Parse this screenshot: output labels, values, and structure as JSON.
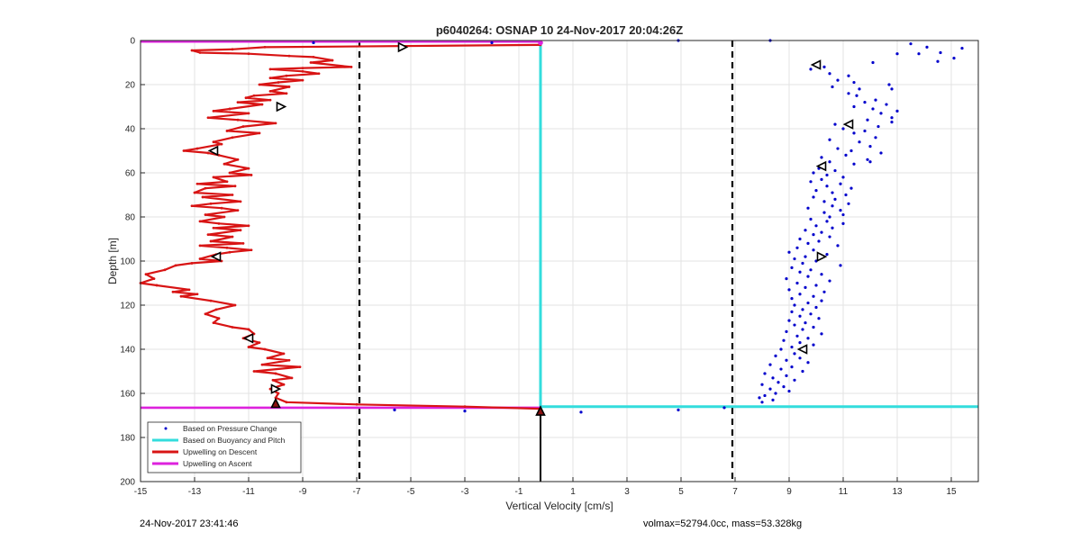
{
  "chart_data": {
    "type": "scatter",
    "title": "p6040264: OSNAP 10 24-Nov-2017 20:04:26Z",
    "xlabel": "Vertical Velocity [cm/s]",
    "ylabel": "Depth [m]",
    "xlim": [
      -15,
      16
    ],
    "ylim": [
      0,
      200
    ],
    "y_reversed": true,
    "grid": true,
    "legend_position": "bottom-left",
    "xticks": [
      -15,
      -13,
      -11,
      -9,
      -7,
      -5,
      -3,
      -1,
      1,
      3,
      5,
      7,
      9,
      11,
      13,
      15
    ],
    "yticks": [
      0,
      20,
      40,
      60,
      80,
      100,
      120,
      140,
      160,
      180,
      200
    ],
    "legend": [
      "Based on Pressure Change",
      "Based on Buoyancy and Pitch",
      "Upwelling on Descent",
      "Upwelling on Ascent"
    ],
    "colors": {
      "pressure": "#0000cc",
      "buoyancy": "#33dddd",
      "descent": "#d81414",
      "ascent": "#dd22dd",
      "dashed": "#000000"
    },
    "dashed_lines_x": [
      -6.9,
      6.9
    ],
    "buoyancy_line": {
      "x": -0.2,
      "depth_top": 1.5,
      "depth_bottom": 166,
      "bottom_line_x_start": -0.2,
      "bottom_line_x_end": 16
    },
    "ascent_lines": [
      {
        "depth": 0.5,
        "x_start": -15,
        "x_end": -0.2
      },
      {
        "depth": 166.5,
        "x_start": -15,
        "x_end": -0.2
      }
    ],
    "descent_profile": [
      [
        -0.2,
        2
      ],
      [
        -10.4,
        3
      ],
      [
        -11.6,
        4
      ],
      [
        -13.1,
        4.5
      ],
      [
        -12.8,
        5.5
      ],
      [
        -11.0,
        6
      ],
      [
        -9.5,
        7
      ],
      [
        -8.6,
        7.5
      ],
      [
        -7.9,
        9
      ],
      [
        -8.7,
        10
      ],
      [
        -7.2,
        12
      ],
      [
        -9.0,
        12.5
      ],
      [
        -10.2,
        13
      ],
      [
        -9.0,
        14
      ],
      [
        -8.4,
        15
      ],
      [
        -9.6,
        16
      ],
      [
        -10.2,
        17
      ],
      [
        -9.0,
        18
      ],
      [
        -9.9,
        19
      ],
      [
        -10.6,
        20
      ],
      [
        -9.5,
        21
      ],
      [
        -10.2,
        23
      ],
      [
        -9.6,
        24
      ],
      [
        -10.8,
        25
      ],
      [
        -11.1,
        26
      ],
      [
        -10.2,
        27
      ],
      [
        -11.4,
        28
      ],
      [
        -10.5,
        29
      ],
      [
        -11.7,
        31
      ],
      [
        -12.3,
        32
      ],
      [
        -11.0,
        33
      ],
      [
        -12.5,
        35
      ],
      [
        -11.4,
        36
      ],
      [
        -10.0,
        37.5
      ],
      [
        -11.2,
        39
      ],
      [
        -11.8,
        41
      ],
      [
        -10.6,
        42
      ],
      [
        -11.6,
        44
      ],
      [
        -12.3,
        46
      ],
      [
        -12.0,
        47
      ],
      [
        -12.9,
        49
      ],
      [
        -13.4,
        50
      ],
      [
        -12.5,
        51
      ],
      [
        -12.1,
        52
      ],
      [
        -11.4,
        54
      ],
      [
        -11.9,
        56
      ],
      [
        -11.0,
        58
      ],
      [
        -11.7,
        60
      ],
      [
        -10.9,
        61
      ],
      [
        -12.3,
        62
      ],
      [
        -11.8,
        64
      ],
      [
        -12.9,
        65
      ],
      [
        -11.5,
        66
      ],
      [
        -12.6,
        67
      ],
      [
        -13.0,
        69
      ],
      [
        -11.6,
        70
      ],
      [
        -12.7,
        71
      ],
      [
        -11.3,
        73
      ],
      [
        -12.4,
        74
      ],
      [
        -13.1,
        75
      ],
      [
        -12.0,
        76
      ],
      [
        -11.4,
        77
      ],
      [
        -12.6,
        79
      ],
      [
        -11.9,
        80
      ],
      [
        -12.8,
        82
      ],
      [
        -12.1,
        83
      ],
      [
        -11.0,
        84
      ],
      [
        -12.3,
        85
      ],
      [
        -11.3,
        86
      ],
      [
        -12.5,
        88
      ],
      [
        -11.6,
        89
      ],
      [
        -12.4,
        91
      ],
      [
        -11.2,
        92
      ],
      [
        -12.8,
        93
      ],
      [
        -11.8,
        94
      ],
      [
        -10.9,
        95
      ],
      [
        -11.7,
        96
      ],
      [
        -12.2,
        97
      ],
      [
        -12.8,
        99
      ],
      [
        -12.0,
        100
      ],
      [
        -13.1,
        101
      ],
      [
        -13.7,
        102
      ],
      [
        -14.1,
        104
      ],
      [
        -14.8,
        106
      ],
      [
        -14.5,
        108
      ],
      [
        -15.0,
        110
      ],
      [
        -14.4,
        111
      ],
      [
        -13.2,
        113
      ],
      [
        -13.8,
        114
      ],
      [
        -12.9,
        115
      ],
      [
        -13.5,
        116
      ],
      [
        -12.4,
        118
      ],
      [
        -11.5,
        120
      ],
      [
        -12.2,
        122
      ],
      [
        -12.6,
        124
      ],
      [
        -12.1,
        126
      ],
      [
        -12.3,
        128
      ],
      [
        -11.6,
        130
      ],
      [
        -11.0,
        131
      ],
      [
        -10.8,
        133
      ],
      [
        -11.2,
        135
      ],
      [
        -10.6,
        137
      ],
      [
        -11.0,
        139
      ],
      [
        -10.4,
        140
      ],
      [
        -9.7,
        142
      ],
      [
        -10.3,
        144
      ],
      [
        -9.5,
        145
      ],
      [
        -10.5,
        147
      ],
      [
        -9.1,
        148
      ],
      [
        -10.8,
        150
      ],
      [
        -10.0,
        151
      ],
      [
        -9.4,
        153
      ],
      [
        -10.1,
        154
      ],
      [
        -9.7,
        156
      ],
      [
        -10.2,
        158
      ],
      [
        -9.9,
        160
      ],
      [
        -10.0,
        162
      ],
      [
        -9.6,
        164
      ],
      [
        -7.0,
        165
      ],
      [
        -3.0,
        166
      ],
      [
        -0.2,
        167
      ]
    ],
    "descent_markers": [
      {
        "x": -5.3,
        "depth": 3,
        "dir": "right"
      },
      {
        "x": -9.8,
        "depth": 30,
        "dir": "right"
      },
      {
        "x": -12.3,
        "depth": 50,
        "dir": "left"
      },
      {
        "x": -12.2,
        "depth": 98,
        "dir": "left"
      },
      {
        "x": -11.0,
        "depth": 135,
        "dir": "left"
      },
      {
        "x": -10.0,
        "depth": 158,
        "dir": "right"
      },
      {
        "x": -10.0,
        "depth": 164.5,
        "dir": "up"
      },
      {
        "x": -0.2,
        "depth": 168,
        "dir": "up"
      }
    ],
    "pressure_markers": [
      {
        "x": 10.0,
        "depth": 11,
        "dir": "left"
      },
      {
        "x": 11.2,
        "depth": 38,
        "dir": "left"
      },
      {
        "x": 10.2,
        "depth": 57,
        "dir": "left"
      },
      {
        "x": 10.2,
        "depth": 98,
        "dir": "right"
      },
      {
        "x": 9.5,
        "depth": 140,
        "dir": "left"
      }
    ],
    "pressure_outliers": [
      [
        -8.6,
        1
      ],
      [
        -2.0,
        1
      ],
      [
        4.9,
        0
      ],
      [
        8.3,
        0
      ],
      [
        -5.6,
        167.5
      ],
      [
        -3.0,
        168
      ],
      [
        1.3,
        168.5
      ],
      [
        4.9,
        167.5
      ],
      [
        6.6,
        166.5
      ]
    ],
    "pressure_scatter": [
      [
        13.5,
        1.5
      ],
      [
        14.1,
        3.0
      ],
      [
        15.4,
        3.5
      ],
      [
        14.6,
        5.5
      ],
      [
        13.8,
        6.0
      ],
      [
        13.0,
        6.0
      ],
      [
        15.1,
        8.0
      ],
      [
        14.5,
        9.5
      ],
      [
        12.1,
        10.0
      ],
      [
        10.3,
        12.0
      ],
      [
        9.8,
        13.0
      ],
      [
        10.5,
        15.0
      ],
      [
        11.2,
        16.0
      ],
      [
        10.8,
        18.0
      ],
      [
        11.4,
        19.0
      ],
      [
        12.7,
        20.0
      ],
      [
        10.6,
        21.0
      ],
      [
        11.6,
        22.0
      ],
      [
        12.8,
        22.0
      ],
      [
        11.2,
        24.0
      ],
      [
        11.5,
        25.0
      ],
      [
        12.2,
        27.0
      ],
      [
        11.8,
        28.0
      ],
      [
        12.6,
        29.0
      ],
      [
        11.4,
        30.0
      ],
      [
        12.1,
        31.0
      ],
      [
        13.0,
        32.0
      ],
      [
        12.4,
        33.0
      ],
      [
        12.8,
        35.0
      ],
      [
        11.9,
        36.0
      ],
      [
        12.8,
        37.0
      ],
      [
        10.7,
        38.0
      ],
      [
        12.3,
        39.0
      ],
      [
        11.0,
        40.0
      ],
      [
        11.8,
        41.0
      ],
      [
        11.4,
        42.0
      ],
      [
        12.2,
        44.0
      ],
      [
        10.5,
        45.0
      ],
      [
        11.6,
        46.0
      ],
      [
        12.0,
        48.0
      ],
      [
        10.8,
        49.0
      ],
      [
        11.3,
        50.0
      ],
      [
        12.4,
        51.0
      ],
      [
        11.1,
        52.0
      ],
      [
        10.2,
        53.0
      ],
      [
        11.9,
        54.0
      ],
      [
        10.5,
        55.0
      ],
      [
        12.0,
        55.0
      ],
      [
        11.4,
        56.0
      ],
      [
        10.1,
        58.0
      ],
      [
        10.7,
        59.0
      ],
      [
        9.9,
        60.0
      ],
      [
        10.4,
        61.0
      ],
      [
        11.0,
        62.0
      ],
      [
        10.2,
        63.0
      ],
      [
        9.8,
        64.0
      ],
      [
        10.9,
        65.0
      ],
      [
        10.4,
        66.0
      ],
      [
        11.3,
        67.0
      ],
      [
        10.0,
        68.0
      ],
      [
        10.6,
        69.0
      ],
      [
        11.1,
        70.0
      ],
      [
        9.9,
        71.0
      ],
      [
        10.7,
        72.0
      ],
      [
        10.3,
        73.0
      ],
      [
        11.2,
        74.0
      ],
      [
        10.6,
        75.0
      ],
      [
        9.7,
        76.0
      ],
      [
        10.9,
        77.0
      ],
      [
        10.3,
        78.0
      ],
      [
        11.0,
        79.0
      ],
      [
        10.5,
        80.0
      ],
      [
        9.8,
        81.0
      ],
      [
        10.4,
        82.0
      ],
      [
        11.0,
        83.0
      ],
      [
        10.0,
        84.0
      ],
      [
        10.6,
        85.0
      ],
      [
        9.6,
        86.0
      ],
      [
        10.2,
        87.0
      ],
      [
        9.9,
        88.0
      ],
      [
        10.5,
        89.0
      ],
      [
        9.4,
        90.0
      ],
      [
        10.1,
        91.0
      ],
      [
        9.7,
        92.0
      ],
      [
        10.8,
        93.0
      ],
      [
        9.3,
        94.0
      ],
      [
        9.9,
        95.0
      ],
      [
        9.0,
        96.0
      ],
      [
        10.4,
        97.0
      ],
      [
        9.6,
        98.0
      ],
      [
        9.2,
        99.0
      ],
      [
        10.0,
        100.0
      ],
      [
        9.5,
        101.0
      ],
      [
        10.9,
        102.0
      ],
      [
        9.1,
        103.0
      ],
      [
        9.8,
        104.0
      ],
      [
        9.4,
        105.0
      ],
      [
        10.2,
        106.0
      ],
      [
        9.7,
        107.0
      ],
      [
        8.9,
        108.0
      ],
      [
        10.5,
        109.0
      ],
      [
        9.3,
        110.0
      ],
      [
        10.0,
        111.0
      ],
      [
        9.6,
        112.0
      ],
      [
        9.0,
        113.0
      ],
      [
        10.3,
        114.0
      ],
      [
        9.4,
        115.0
      ],
      [
        9.9,
        116.0
      ],
      [
        9.1,
        117.0
      ],
      [
        10.2,
        118.0
      ],
      [
        9.7,
        119.0
      ],
      [
        9.2,
        120.0
      ],
      [
        10.0,
        121.0
      ],
      [
        9.5,
        122.0
      ],
      [
        9.1,
        123.0
      ],
      [
        9.8,
        124.0
      ],
      [
        9.4,
        125.0
      ],
      [
        10.1,
        126.0
      ],
      [
        9.0,
        127.0
      ],
      [
        9.6,
        128.0
      ],
      [
        9.2,
        129.0
      ],
      [
        9.9,
        130.0
      ],
      [
        9.5,
        131.0
      ],
      [
        8.9,
        132.0
      ],
      [
        10.2,
        133.0
      ],
      [
        9.3,
        134.0
      ],
      [
        9.7,
        135.0
      ],
      [
        8.8,
        136.0
      ],
      [
        9.4,
        137.0
      ],
      [
        9.9,
        138.0
      ],
      [
        9.1,
        139.0
      ],
      [
        8.7,
        140.0
      ],
      [
        9.6,
        141.0
      ],
      [
        9.2,
        142.0
      ],
      [
        8.5,
        143.0
      ],
      [
        9.4,
        144.0
      ],
      [
        8.9,
        145.0
      ],
      [
        9.7,
        146.0
      ],
      [
        8.3,
        147.0
      ],
      [
        9.1,
        148.0
      ],
      [
        8.7,
        149.0
      ],
      [
        9.5,
        150.0
      ],
      [
        8.1,
        151.0
      ],
      [
        8.9,
        152.0
      ],
      [
        8.4,
        153.0
      ],
      [
        9.2,
        154.0
      ],
      [
        8.6,
        155.0
      ],
      [
        8.0,
        156.0
      ],
      [
        8.8,
        157.0
      ],
      [
        8.3,
        158.0
      ],
      [
        9.0,
        159.0
      ],
      [
        8.5,
        160.0
      ],
      [
        8.1,
        161.0
      ],
      [
        7.9,
        162.0
      ],
      [
        8.4,
        163.0
      ],
      [
        8.0,
        164.0
      ]
    ]
  },
  "footer": {
    "timestamp": "24-Nov-2017 23:41:46",
    "info": "volmax=52794.0cc, mass=53.328kg"
  }
}
